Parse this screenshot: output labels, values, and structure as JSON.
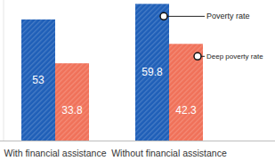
{
  "chart_data": {
    "type": "bar",
    "categories": [
      "With financial assistance",
      "Without financial assistance"
    ],
    "series": [
      {
        "name": "Poverty rate",
        "color": "#1f5fb8",
        "values": [
          53,
          59.8
        ]
      },
      {
        "name": "Deep poverty rate",
        "color": "#f07159",
        "values": [
          33.8,
          42.3
        ]
      }
    ],
    "ylim": [
      0,
      61.5
    ],
    "data_labels": true,
    "tick_labels": "x"
  }
}
